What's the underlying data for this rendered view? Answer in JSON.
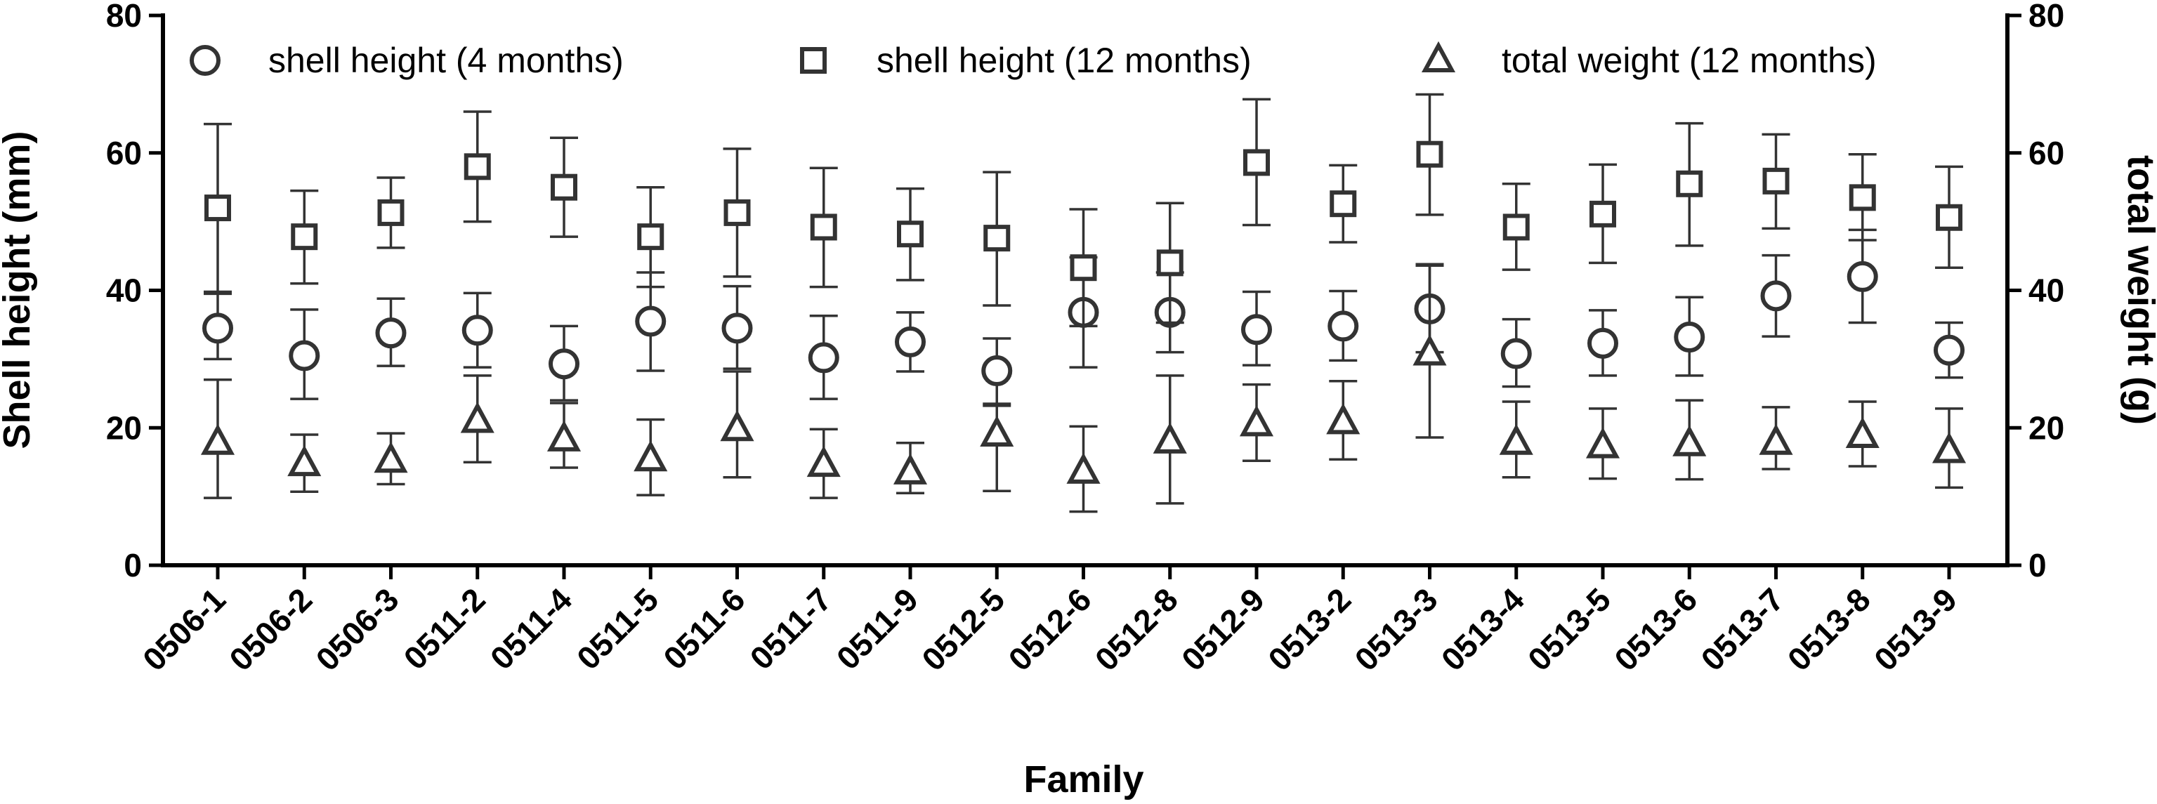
{
  "chart_data": {
    "type": "scatter",
    "title": "",
    "xlabel": "Family",
    "ylabel": "Shell height (mm)",
    "y2label": "total weight (g)",
    "ylim": [
      0,
      80
    ],
    "y2lim": [
      0,
      80
    ],
    "yticks": [
      0,
      20,
      40,
      60,
      80
    ],
    "y2ticks": [
      0,
      20,
      40,
      60,
      80
    ],
    "legend_position": "top",
    "categories": [
      "0506-1",
      "0506-2",
      "0506-3",
      "0511-2",
      "0511-4",
      "0511-5",
      "0511-6",
      "0511-7",
      "0511-9",
      "0512-5",
      "0512-6",
      "0512-8",
      "0512-9",
      "0513-2",
      "0513-3",
      "0513-4",
      "0513-5",
      "0513-6",
      "0513-7",
      "0513-8",
      "0513-9"
    ],
    "series": [
      {
        "name": "shell height (4 months)",
        "marker": "circle",
        "axis": "left",
        "values": [
          34.5,
          30.5,
          33.8,
          34.2,
          29.3,
          35.5,
          34.5,
          30.2,
          32.5,
          28.3,
          36.8,
          36.8,
          34.3,
          34.8,
          37.3,
          30.8,
          32.3,
          33.2,
          39.2,
          42.0,
          31.3
        ],
        "err_low": [
          30.0,
          24.2,
          29.0,
          28.8,
          24.0,
          28.3,
          28.6,
          24.2,
          28.2,
          23.5,
          28.8,
          31.0,
          29.1,
          29.8,
          31.0,
          26.0,
          27.6,
          27.6,
          33.3,
          35.3,
          27.3
        ],
        "err_high": [
          39.5,
          37.2,
          38.8,
          39.6,
          34.8,
          42.6,
          40.6,
          36.3,
          36.8,
          33.0,
          44.8,
          42.6,
          39.8,
          39.9,
          43.6,
          35.8,
          37.1,
          39.0,
          45.1,
          48.8,
          35.3
        ]
      },
      {
        "name": "shell height (12 months)",
        "marker": "square",
        "axis": "left",
        "values": [
          52.0,
          47.8,
          51.3,
          58.0,
          55.0,
          47.8,
          51.3,
          49.2,
          48.2,
          47.6,
          43.3,
          44.0,
          58.6,
          52.6,
          59.8,
          49.2,
          51.1,
          55.5,
          55.9,
          53.5,
          50.6
        ],
        "err_low": [
          39.8,
          41.0,
          46.2,
          50.0,
          47.8,
          40.5,
          42.0,
          40.5,
          41.5,
          37.8,
          34.8,
          35.3,
          49.5,
          47.0,
          51.0,
          43.0,
          44.0,
          46.5,
          49.0,
          47.3,
          43.3
        ],
        "err_high": [
          64.2,
          54.5,
          56.4,
          66.0,
          62.2,
          55.0,
          60.6,
          57.8,
          54.8,
          57.2,
          51.8,
          52.7,
          67.8,
          58.2,
          68.5,
          55.5,
          58.3,
          64.3,
          62.7,
          59.8,
          58.0
        ]
      },
      {
        "name": "total weight (12 months)",
        "marker": "triangle",
        "axis": "right",
        "values": [
          17.8,
          14.7,
          15.2,
          21.0,
          18.3,
          15.4,
          19.8,
          14.6,
          13.5,
          19.0,
          13.6,
          18.0,
          20.5,
          20.8,
          30.8,
          17.8,
          17.3,
          17.6,
          17.8,
          18.8,
          16.6
        ],
        "err_low": [
          9.8,
          10.7,
          11.8,
          15.0,
          14.2,
          10.2,
          12.8,
          9.8,
          10.5,
          10.8,
          7.8,
          9.0,
          15.2,
          15.4,
          18.6,
          12.8,
          12.6,
          12.5,
          14.0,
          14.4,
          11.3
        ],
        "err_high": [
          27.0,
          19.0,
          19.2,
          27.6,
          23.6,
          21.2,
          28.2,
          19.8,
          17.8,
          23.2,
          20.2,
          27.6,
          26.3,
          26.8,
          43.8,
          23.8,
          22.8,
          24.0,
          23.0,
          23.8,
          22.8
        ]
      }
    ]
  }
}
